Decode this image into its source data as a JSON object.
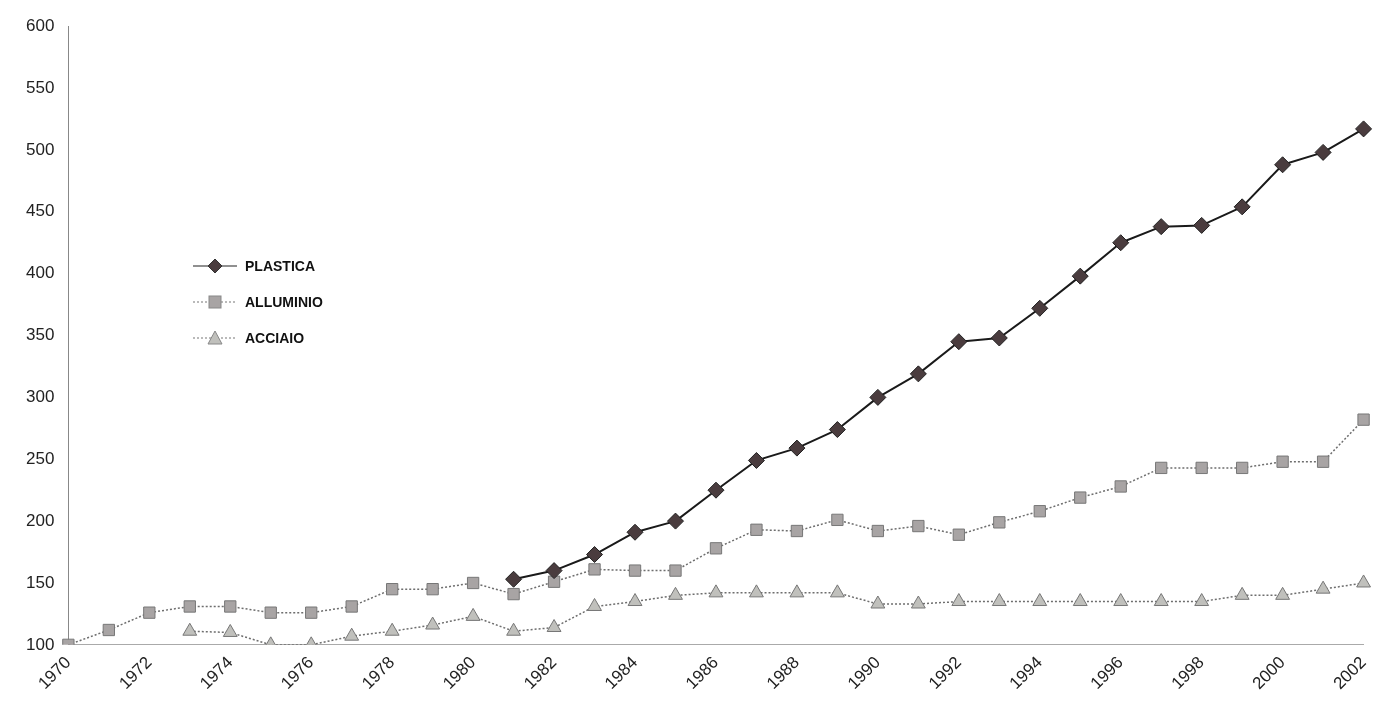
{
  "chart_data": {
    "type": "line",
    "categories": [
      "1970",
      null,
      "1972",
      null,
      "1974",
      null,
      "1976",
      null,
      "1978",
      null,
      "1980",
      null,
      "1982",
      null,
      "1984",
      null,
      "1986",
      null,
      "1988",
      null,
      "1990",
      null,
      "1992",
      null,
      "1994",
      null,
      "1996",
      null,
      "1998",
      null,
      "2000",
      null,
      "2002"
    ],
    "series": [
      {
        "name": "PLASTICA",
        "color": "#4a3c3e",
        "marker": "diamond",
        "line_style": "solid",
        "values": [
          null,
          null,
          null,
          null,
          null,
          null,
          null,
          null,
          null,
          null,
          null,
          153,
          160,
          173,
          191,
          200,
          225,
          249,
          259,
          274,
          300,
          319,
          345,
          348,
          372,
          398,
          425,
          438,
          439,
          454,
          488,
          498,
          517
        ]
      },
      {
        "name": "ALLUMINIO",
        "color": "#a8a4a4",
        "marker": "square",
        "line_style": "dotted",
        "values": [
          100,
          112,
          126,
          131,
          131,
          126,
          126,
          131,
          145,
          145,
          150,
          141,
          151,
          161,
          160,
          160,
          178,
          193,
          192,
          201,
          192,
          196,
          189,
          199,
          208,
          219,
          228,
          243,
          243,
          243,
          248,
          248,
          282
        ]
      },
      {
        "name": "ACCIAIO",
        "color": "#c0c0bc",
        "marker": "triangle",
        "line_style": "dotted",
        "values": [
          null,
          null,
          null,
          111,
          110,
          100,
          100,
          107,
          111,
          116,
          123,
          111,
          114,
          131,
          135,
          140,
          142,
          142,
          142,
          142,
          133,
          133,
          135,
          135,
          135,
          135,
          135,
          135,
          135,
          140,
          140,
          145,
          150
        ]
      }
    ],
    "ylim": [
      100,
      600
    ],
    "yticks": [
      100,
      150,
      200,
      250,
      300,
      350,
      400,
      450,
      500,
      550,
      600
    ],
    "grid": false,
    "legend": "top left"
  }
}
